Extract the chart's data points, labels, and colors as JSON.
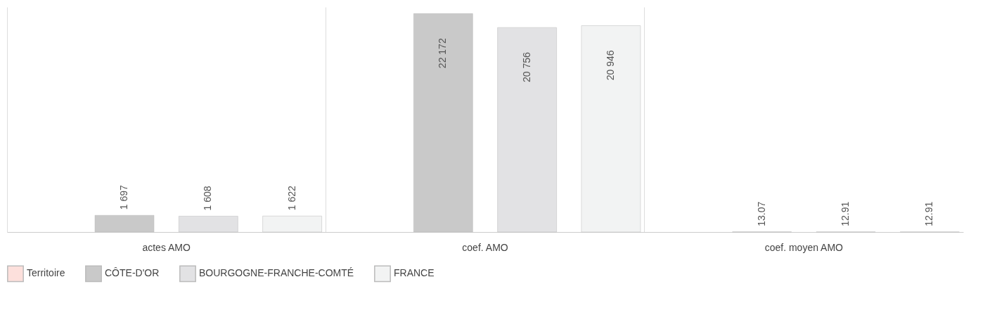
{
  "chart_data": {
    "type": "bar",
    "categories": [
      "actes AMO",
      "coef. AMO",
      "coef. moyen AMO"
    ],
    "series": [
      {
        "name": "Territoire",
        "color": "#fde0dc",
        "values": [
          null,
          null,
          null
        ]
      },
      {
        "name": "CÔTE-D'OR",
        "color": "#c9c9c9",
        "values": [
          1697,
          22172,
          13.07
        ],
        "value_labels": [
          "1 697",
          "22 172",
          "13.07"
        ]
      },
      {
        "name": "BOURGOGNE-FRANCHE-COMTÉ",
        "color": "#e2e2e4",
        "values": [
          1608,
          20756,
          12.91
        ],
        "value_labels": [
          "1 608",
          "20 756",
          "12.91"
        ]
      },
      {
        "name": "FRANCE",
        "color": "#f2f3f3",
        "values": [
          1622,
          20946,
          12.91
        ],
        "value_labels": [
          "1 622",
          "20 946",
          "12.91"
        ]
      }
    ],
    "grid": "x",
    "legend": "bottom"
  }
}
